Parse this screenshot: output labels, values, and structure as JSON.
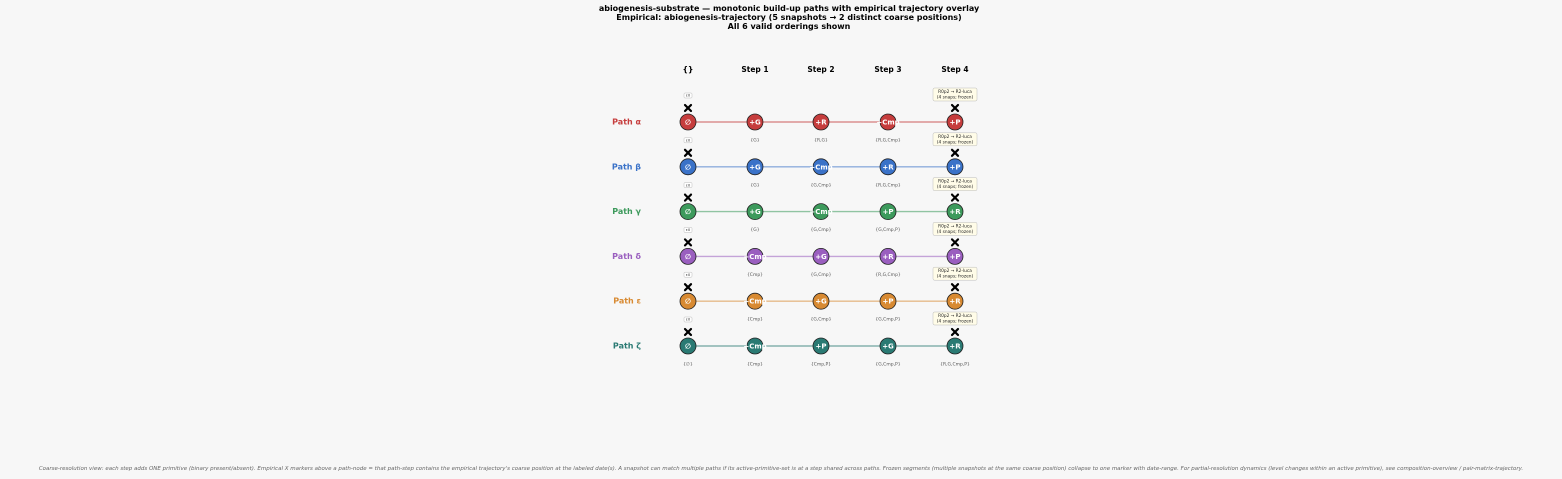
{
  "title": {
    "line1": "abiogenesis-substrate — monotonic build-up paths with empirical trajectory overlay",
    "line2": "Empirical: abiogenesis-trajectory  (5 snapshots → 2 distinct coarse positions)",
    "line3": "All 6 valid orderings shown"
  },
  "columns": [
    "{}",
    "Step 1",
    "Step 2",
    "Step 3",
    "Step 4"
  ],
  "empty_symbol": "∅",
  "start_marker_label": "ε0",
  "end_marker_label_line1": "R0p2 → R2-luca",
  "end_marker_label_line2": "(4 snaps; frozen)",
  "colors": {
    "alpha": "#c63d3d",
    "beta": "#3a72c8",
    "gamma": "#3d9a5c",
    "delta": "#9a5fbf",
    "epsilon": "#d88a32",
    "zeta": "#2a7a73"
  },
  "paths": [
    {
      "key": "alpha",
      "name": "Path α",
      "steps": [
        "+G",
        "+R",
        "+Cmp",
        "+P"
      ],
      "sets": [
        "{G}",
        "{R,G}",
        "{R,G,Cmp}"
      ]
    },
    {
      "key": "beta",
      "name": "Path β",
      "steps": [
        "+G",
        "+Cmp",
        "+R",
        "+P"
      ],
      "sets": [
        "{G}",
        "{G,Cmp}",
        "{R,G,Cmp}"
      ]
    },
    {
      "key": "gamma",
      "name": "Path γ",
      "steps": [
        "+G",
        "+Cmp",
        "+P",
        "+R"
      ],
      "sets": [
        "{G}",
        "{G,Cmp}",
        "{G,Cmp,P}"
      ]
    },
    {
      "key": "delta",
      "name": "Path δ",
      "steps": [
        "+Cmp",
        "+G",
        "+R",
        "+P"
      ],
      "sets": [
        "{Cmp}",
        "{G,Cmp}",
        "{R,G,Cmp}"
      ]
    },
    {
      "key": "epsilon",
      "name": "Path ε",
      "steps": [
        "+Cmp",
        "+G",
        "+P",
        "+R"
      ],
      "sets": [
        "{Cmp}",
        "{G,Cmp}",
        "{G,Cmp,P}"
      ]
    },
    {
      "key": "zeta",
      "name": "Path ζ",
      "steps": [
        "+Cmp",
        "+P",
        "+G",
        "+R"
      ],
      "sets": [
        "{Cmp}",
        "{Cmp,P}",
        "{G,Cmp,P}"
      ]
    }
  ],
  "last_path_extra_sets": {
    "empty": "{∅}",
    "full": "{R,G,Cmp,P}"
  },
  "caption": "Coarse-resolution view: each step adds ONE primitive (binary present/absent). Empirical X markers above a path-node = that path-step contains the empirical trajectory's coarse position at the labeled date(s). A snapshot can match multiple paths if its active-primitive-set is at a step shared across paths. Frozen segments (multiple snapshots at the same coarse position) collapse to one marker with date-range. For partial-resolution dynamics (level changes within an active primitive), see composition-overview / pair-matrix-trajectory."
}
